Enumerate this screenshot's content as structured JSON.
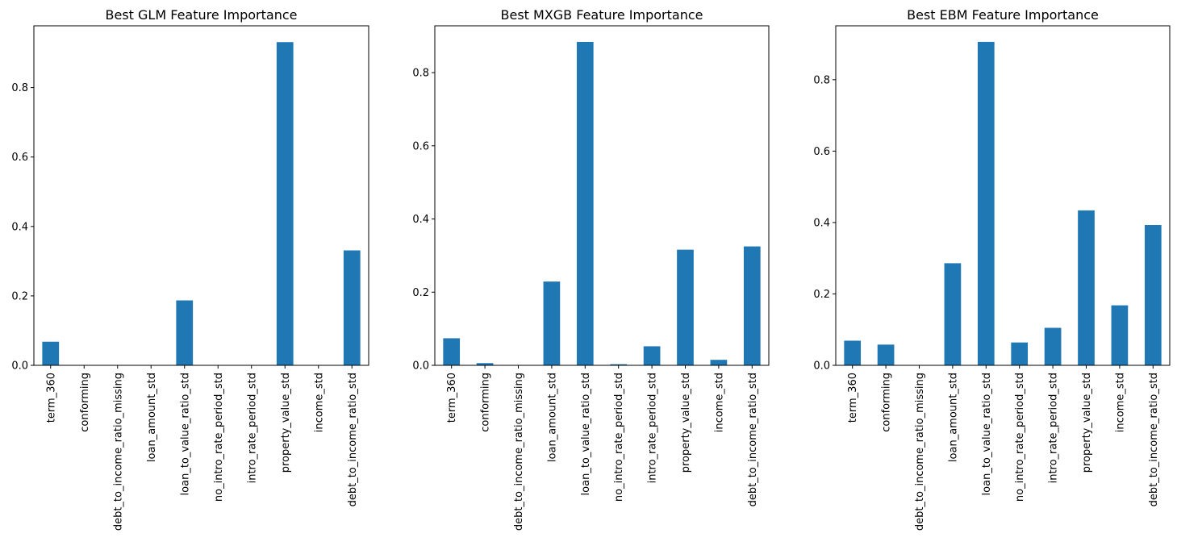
{
  "figure": {
    "panels": [
      {
        "title": "Best GLM Feature Importance"
      },
      {
        "title": "Best MXGB Feature Importance"
      },
      {
        "title": "Best EBM Feature Importance"
      }
    ]
  },
  "colors": {
    "bar": "#1f77b4",
    "axis": "#000000",
    "background": "#ffffff"
  },
  "chart_data": [
    {
      "type": "bar",
      "title": "Best GLM Feature Importance",
      "xlabel": "",
      "ylabel": "",
      "categories": [
        "term_360",
        "conforming",
        "debt_to_income_ratio_missing",
        "loan_amount_std",
        "loan_to_value_ratio_std",
        "no_intro_rate_period_std",
        "intro_rate_period_std",
        "property_value_std",
        "income_std",
        "debt_to_income_ratio_std"
      ],
      "values": [
        0.068,
        0.0,
        0.0,
        0.0,
        0.187,
        0.0,
        0.0,
        0.931,
        0.0,
        0.331
      ],
      "ylim": [
        0,
        0.978
      ],
      "yticks": [
        0.0,
        0.2,
        0.4,
        0.6,
        0.8
      ],
      "ytick_labels": [
        "0.0",
        "0.2",
        "0.4",
        "0.6",
        "0.8"
      ],
      "grid": false,
      "legend": "none"
    },
    {
      "type": "bar",
      "title": "Best MXGB Feature Importance",
      "xlabel": "",
      "ylabel": "",
      "categories": [
        "term_360",
        "conforming",
        "debt_to_income_ratio_missing",
        "loan_amount_std",
        "loan_to_value_ratio_std",
        "no_intro_rate_period_std",
        "intro_rate_period_std",
        "property_value_std",
        "income_std",
        "debt_to_income_ratio_std"
      ],
      "values": [
        0.074,
        0.006,
        0.0,
        0.229,
        0.884,
        0.003,
        0.052,
        0.316,
        0.015,
        0.325
      ],
      "ylim": [
        0,
        0.928
      ],
      "yticks": [
        0.0,
        0.2,
        0.4,
        0.6,
        0.8
      ],
      "ytick_labels": [
        "0.0",
        "0.2",
        "0.4",
        "0.6",
        "0.8"
      ],
      "grid": false,
      "legend": "none"
    },
    {
      "type": "bar",
      "title": "Best EBM Feature Importance",
      "xlabel": "",
      "ylabel": "",
      "categories": [
        "term_360",
        "conforming",
        "debt_to_income_ratio_missing",
        "loan_amount_std",
        "loan_to_value_ratio_std",
        "no_intro_rate_period_std",
        "intro_rate_period_std",
        "property_value_std",
        "income_std",
        "debt_to_income_ratio_std"
      ],
      "values": [
        0.069,
        0.058,
        0.0,
        0.286,
        0.906,
        0.064,
        0.105,
        0.434,
        0.168,
        0.393
      ],
      "ylim": [
        0,
        0.951
      ],
      "yticks": [
        0.0,
        0.2,
        0.4,
        0.6,
        0.8
      ],
      "ytick_labels": [
        "0.0",
        "0.2",
        "0.4",
        "0.6",
        "0.8"
      ],
      "grid": false,
      "legend": "none"
    }
  ]
}
